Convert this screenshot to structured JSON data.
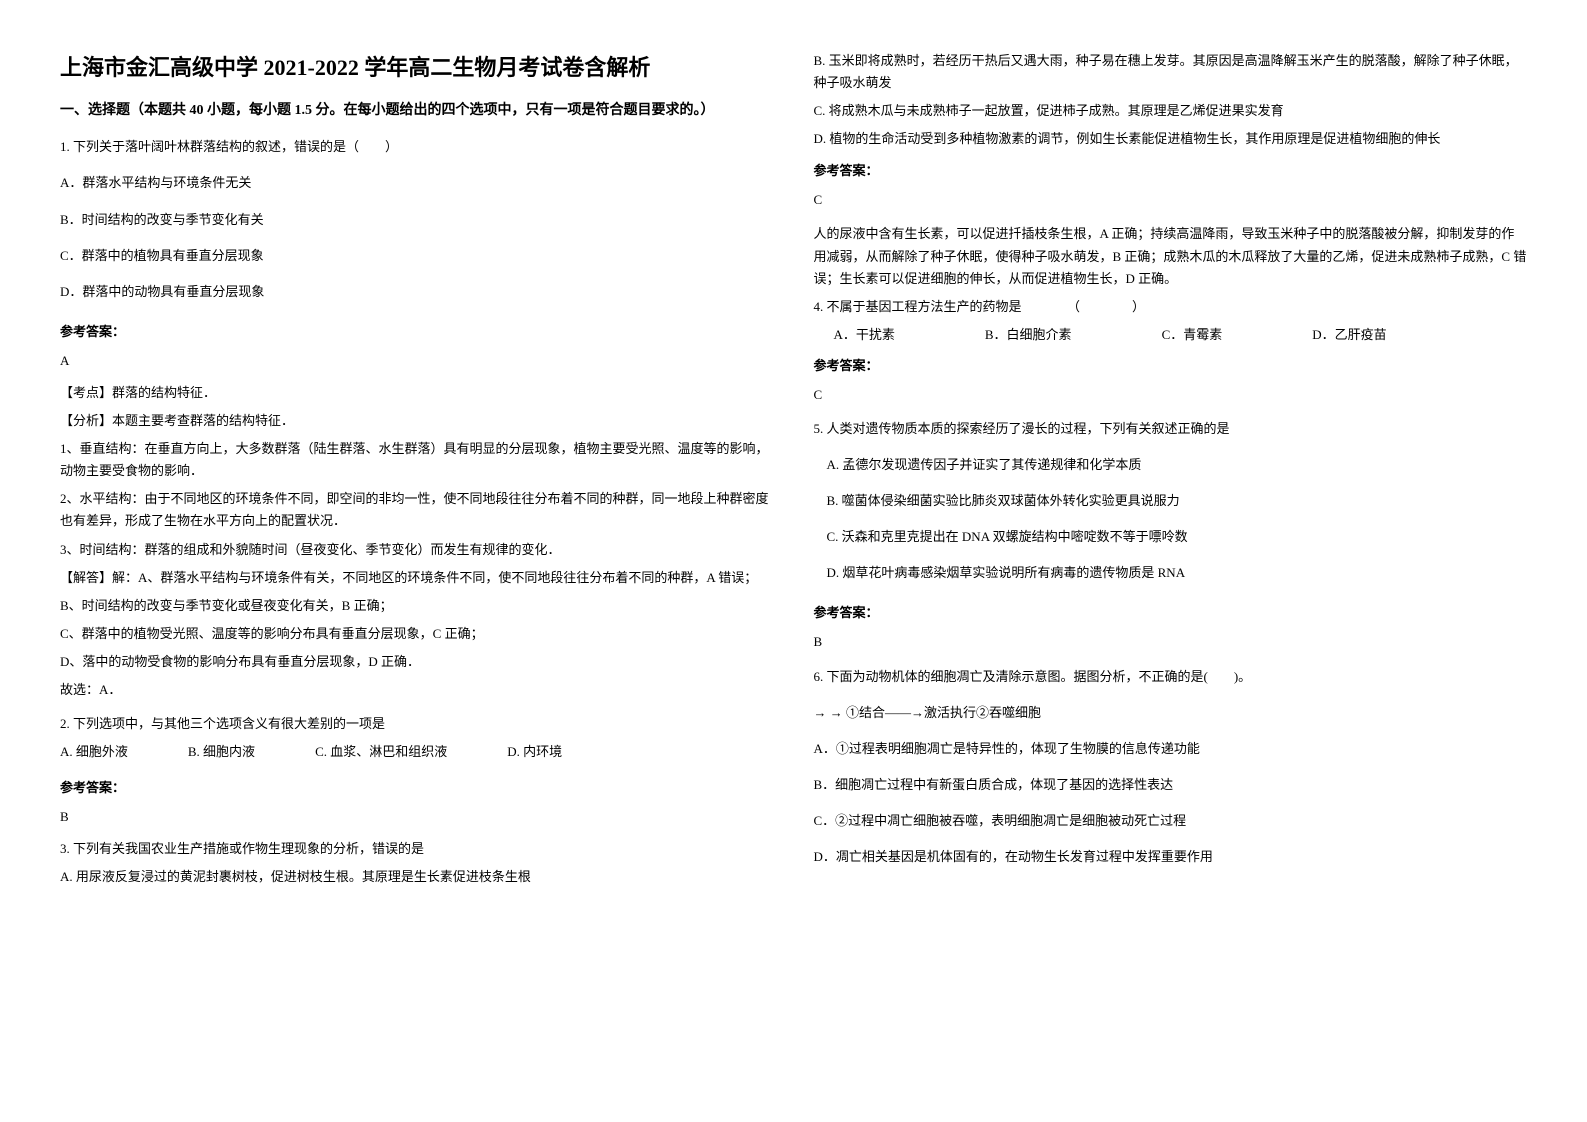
{
  "title": "上海市金汇高级中学 2021-2022 学年高二生物月考试卷含解析",
  "section1_header": "一、选择题（本题共 40 小题，每小题 1.5 分。在每小题给出的四个选项中，只有一项是符合题目要求的。）",
  "q1": {
    "stem": "1. 下列关于落叶阔叶林群落结构的叙述，错误的是（　　）",
    "A": "A．群落水平结构与环境条件无关",
    "B": "B．时间结构的改变与季节变化有关",
    "C": "C．群落中的植物具有垂直分层现象",
    "D": "D．群落中的动物具有垂直分层现象",
    "answer_label": "参考答案：",
    "answer": "A",
    "kaodian": "【考点】群落的结构特征．",
    "fenxi": "【分析】本题主要考查群落的结构特征．",
    "p1": "1、垂直结构：在垂直方向上，大多数群落（陆生群落、水生群落）具有明显的分层现象，植物主要受光照、温度等的影响，动物主要受食物的影响．",
    "p2": "2、水平结构：由于不同地区的环境条件不同，即空间的非均一性，使不同地段往往分布着不同的种群，同一地段上种群密度也有差异，形成了生物在水平方向上的配置状况．",
    "p3": "3、时间结构：群落的组成和外貌随时间（昼夜变化、季节变化）而发生有规律的变化．",
    "jieda": "【解答】解：A、群落水平结构与环境条件有关，不同地区的环境条件不同，使不同地段往往分布着不同的种群，A 错误；",
    "jB": "B、时间结构的改变与季节变化或昼夜变化有关，B 正确；",
    "jC": "C、群落中的植物受光照、温度等的影响分布具有垂直分层现象，C 正确；",
    "jD": "D、落中的动物受食物的影响分布具有垂直分层现象，D 正确．",
    "guxuan": "故选：A．"
  },
  "q2": {
    "stem": "2. 下列选项中，与其他三个选项含义有很大差别的一项是",
    "A": "A. 细胞外液",
    "B": "B. 细胞内液",
    "C": "C. 血浆、淋巴和组织液",
    "D": "D. 内环境",
    "answer_label": "参考答案：",
    "answer": "B"
  },
  "q3": {
    "stem": "3. 下列有关我国农业生产措施或作物生理现象的分析，错误的是",
    "A": "A. 用尿液反复浸过的黄泥封裹树枝，促进树枝生根。其原理是生长素促进枝条生根",
    "B": "B. 玉米即将成熟时，若经历干热后又遇大雨，种子易在穗上发芽。其原因是高温降解玉米产生的脱落酸，解除了种子休眠，种子吸水萌发",
    "C": "C. 将成熟木瓜与未成熟柿子一起放置，促进柿子成熟。其原理是乙烯促进果实发育",
    "D": "D. 植物的生命活动受到多种植物激素的调节，例如生长素能促进植物生长，其作用原理是促进植物细胞的伸长",
    "answer_label": "参考答案：",
    "answer": "C",
    "explain": "人的尿液中含有生长素，可以促进扦插枝条生根，A 正确；持续高温降雨，导致玉米种子中的脱落酸被分解，抑制发芽的作用减弱，从而解除了种子休眠，使得种子吸水萌发，B 正确；成熟木瓜的木瓜释放了大量的乙烯，促进未成熟柿子成熟，C 错误；生长素可以促进细胞的伸长，从而促进植物生长，D 正确。"
  },
  "q4": {
    "stem": "4. 不属于基因工程方法生产的药物是　　　　（　　　　）",
    "A": "A．干扰素",
    "B": "B．白细胞介素",
    "C": "C．青霉素",
    "D": "D．乙肝疫苗",
    "answer_label": "参考答案：",
    "answer": "C"
  },
  "q5": {
    "stem": "5. 人类对遗传物质本质的探索经历了漫长的过程，下列有关叙述正确的是",
    "A": "A. 孟德尔发现遗传因子并证实了其传递规律和化学本质",
    "B": "B. 噬菌体侵染细菌实验比肺炎双球菌体外转化实验更具说服力",
    "C": "C. 沃森和克里克提出在 DNA 双螺旋结构中嘧啶数不等于嘌呤数",
    "D": "D. 烟草花叶病毒感染烟草实验说明所有病毒的遗传物质是 RNA",
    "answer_label": "参考答案：",
    "answer": "B"
  },
  "q6": {
    "stem": "6. 下面为动物机体的细胞凋亡及清除示意图。据图分析，不正确的是(　　)。",
    "diagram": "→ → ①结合——→激活执行②吞噬细胞",
    "A": "A．①过程表明细胞凋亡是特异性的，体现了生物膜的信息传递功能",
    "B": "B．细胞凋亡过程中有新蛋白质合成，体现了基因的选择性表达",
    "C": "C．②过程中凋亡细胞被吞噬，表明细胞凋亡是细胞被动死亡过程",
    "D": "D．凋亡相关基因是机体固有的，在动物生长发育过程中发挥重要作用"
  }
}
